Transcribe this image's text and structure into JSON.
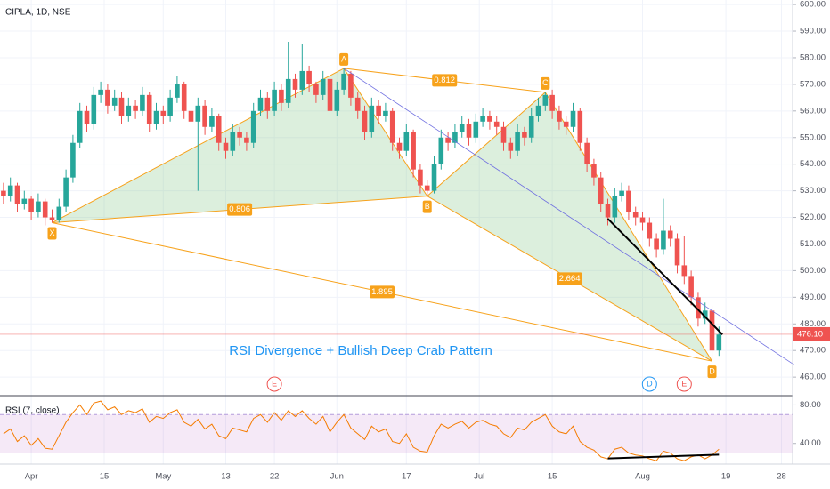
{
  "chart_data": {
    "type": "candlestick",
    "title": "CIPLA, 1D, NSE",
    "annotation": "RSI Divergence + Bullish Deep Crab Pattern",
    "up_color": "#26a69a",
    "down_color": "#ef5350",
    "xlim": [
      -0.5,
      113.6
    ],
    "ylim": [
      453.7,
      601.7
    ],
    "xticks": [
      {
        "value": 4,
        "label": "Apr"
      },
      {
        "value": 14.5,
        "label": "15"
      },
      {
        "value": 23,
        "label": "May"
      },
      {
        "value": 32,
        "label": "13"
      },
      {
        "value": 39,
        "label": "22"
      },
      {
        "value": 48,
        "label": "Jun"
      },
      {
        "value": 58,
        "label": "17"
      },
      {
        "value": 68.5,
        "label": "Jul"
      },
      {
        "value": 79,
        "label": "15"
      },
      {
        "value": 92,
        "label": "Aug"
      },
      {
        "value": 104,
        "label": "19"
      },
      {
        "value": 112,
        "label": "28"
      }
    ],
    "yticks": [
      {
        "value": 460,
        "label": "460.00"
      },
      {
        "value": 470,
        "label": "470.00"
      },
      {
        "value": 480,
        "label": "480.00"
      },
      {
        "value": 490,
        "label": "490.00"
      },
      {
        "value": 500,
        "label": "500.00"
      },
      {
        "value": 510,
        "label": "510.00"
      },
      {
        "value": 520,
        "label": "520.00"
      },
      {
        "value": 530,
        "label": "530.00"
      },
      {
        "value": 540,
        "label": "540.00"
      },
      {
        "value": 550,
        "label": "550.00"
      },
      {
        "value": 560,
        "label": "560.00"
      },
      {
        "value": 570,
        "label": "570.00"
      },
      {
        "value": 580,
        "label": "580.00"
      },
      {
        "value": 590,
        "label": "590.00"
      },
      {
        "value": 600,
        "label": "600.00"
      }
    ],
    "grid": true,
    "last_price": {
      "value": 476.1,
      "label": "476.10",
      "color": "#ef5350"
    },
    "ohlc": [
      [
        530,
        533,
        525,
        528
      ],
      [
        528,
        535,
        526,
        532
      ],
      [
        532,
        533,
        522,
        525
      ],
      [
        525,
        530,
        523,
        527
      ],
      [
        527,
        528,
        519,
        522
      ],
      [
        522,
        529,
        520,
        526
      ],
      [
        526,
        527,
        517,
        520
      ],
      [
        520,
        523,
        518,
        519
      ],
      [
        519,
        527,
        518,
        524
      ],
      [
        524,
        538,
        522,
        535
      ],
      [
        535,
        551,
        533,
        548
      ],
      [
        548,
        563,
        546,
        560
      ],
      [
        560,
        562,
        552,
        555
      ],
      [
        555,
        569,
        553,
        566
      ],
      [
        566,
        571,
        563,
        568
      ],
      [
        568,
        570,
        559,
        562
      ],
      [
        562,
        568,
        560,
        565
      ],
      [
        565,
        567,
        555,
        558
      ],
      [
        558,
        565,
        556,
        562
      ],
      [
        562,
        564,
        557,
        560
      ],
      [
        560,
        569,
        558,
        566
      ],
      [
        566,
        567,
        552,
        555
      ],
      [
        555,
        563,
        553,
        560
      ],
      [
        560,
        562,
        555,
        558
      ],
      [
        558,
        568,
        556,
        565
      ],
      [
        565,
        573,
        563,
        570
      ],
      [
        570,
        571,
        557,
        560
      ],
      [
        560,
        562,
        553,
        556
      ],
      [
        556,
        565,
        530,
        562
      ],
      [
        562,
        564,
        551,
        554
      ],
      [
        554,
        561,
        552,
        558
      ],
      [
        558,
        559,
        545,
        548
      ],
      [
        548,
        550,
        542,
        545
      ],
      [
        545,
        555,
        543,
        552
      ],
      [
        552,
        554,
        547,
        550
      ],
      [
        550,
        552,
        545,
        548
      ],
      [
        548,
        563,
        546,
        560
      ],
      [
        560,
        568,
        558,
        565
      ],
      [
        565,
        567,
        557,
        560
      ],
      [
        560,
        571,
        558,
        568
      ],
      [
        568,
        570,
        560,
        563
      ],
      [
        563,
        586,
        561,
        572
      ],
      [
        572,
        574,
        565,
        568
      ],
      [
        568,
        585,
        566,
        575
      ],
      [
        575,
        577,
        567,
        570
      ],
      [
        570,
        571,
        563,
        566
      ],
      [
        566,
        575,
        564,
        572
      ],
      [
        572,
        574,
        557,
        560
      ],
      [
        560,
        571,
        558,
        568
      ],
      [
        568,
        576,
        566,
        574
      ],
      [
        574,
        575,
        562,
        565
      ],
      [
        565,
        567,
        557,
        560
      ],
      [
        560,
        562,
        549,
        552
      ],
      [
        552,
        565,
        550,
        562
      ],
      [
        562,
        564,
        555,
        558
      ],
      [
        558,
        563,
        556,
        560
      ],
      [
        560,
        561,
        545,
        548
      ],
      [
        548,
        550,
        542,
        545
      ],
      [
        545,
        555,
        543,
        552
      ],
      [
        552,
        553,
        535,
        538
      ],
      [
        538,
        540,
        529,
        532
      ],
      [
        532,
        534,
        528,
        530
      ],
      [
        530,
        543,
        529,
        540
      ],
      [
        540,
        553,
        538,
        550
      ],
      [
        550,
        552,
        545,
        548
      ],
      [
        548,
        555,
        546,
        552
      ],
      [
        552,
        558,
        550,
        555
      ],
      [
        555,
        557,
        547,
        550
      ],
      [
        550,
        559,
        548,
        556
      ],
      [
        556,
        561,
        554,
        558
      ],
      [
        558,
        560,
        553,
        556
      ],
      [
        556,
        558,
        551,
        554
      ],
      [
        554,
        556,
        545,
        548
      ],
      [
        548,
        550,
        542,
        545
      ],
      [
        545,
        555,
        543,
        552
      ],
      [
        552,
        554,
        547,
        550
      ],
      [
        550,
        561,
        548,
        558
      ],
      [
        558,
        565,
        556,
        562
      ],
      [
        562,
        567,
        560,
        566
      ],
      [
        566,
        568,
        557,
        560
      ],
      [
        560,
        562,
        553,
        556
      ],
      [
        556,
        558,
        551,
        554
      ],
      [
        554,
        563,
        552,
        560
      ],
      [
        560,
        561,
        545,
        548
      ],
      [
        548,
        550,
        537,
        540
      ],
      [
        540,
        542,
        532,
        535
      ],
      [
        535,
        537,
        522,
        525
      ],
      [
        525,
        527,
        517,
        520
      ],
      [
        520,
        531,
        518,
        528
      ],
      [
        528,
        533,
        526,
        530
      ],
      [
        530,
        532,
        519,
        522
      ],
      [
        522,
        524,
        517,
        520
      ],
      [
        520,
        522,
        515,
        518
      ],
      [
        518,
        520,
        509,
        512
      ],
      [
        512,
        514,
        505,
        508
      ],
      [
        508,
        527,
        506,
        515
      ],
      [
        515,
        517,
        509,
        512
      ],
      [
        512,
        514,
        499,
        502
      ],
      [
        502,
        513,
        495,
        498
      ],
      [
        498,
        500,
        487,
        490
      ],
      [
        490,
        492,
        479,
        482
      ],
      [
        482,
        488,
        480,
        485
      ],
      [
        485,
        487,
        466,
        470
      ],
      [
        470,
        479,
        468,
        476
      ]
    ],
    "pattern": {
      "color": "#f7a21b",
      "fill": "rgba(129,199,132,0.28)",
      "points": [
        {
          "label": "X",
          "index": 7,
          "price": 518
        },
        {
          "label": "A",
          "index": 49,
          "price": 576
        },
        {
          "label": "B",
          "index": 61,
          "price": 528
        },
        {
          "label": "C",
          "index": 78,
          "price": 567
        },
        {
          "label": "D",
          "index": 102,
          "price": 466
        }
      ],
      "ratios": {
        "XB": "0.806",
        "AC": "0.812",
        "BD": "2.664",
        "XD": "1.895"
      }
    },
    "trendlines": [
      {
        "color": "#6f6fe0",
        "start": [
          49,
          576
        ],
        "end": [
          113.8,
          464.7
        ]
      },
      {
        "color": "#000000",
        "start": [
          87,
          519.5
        ],
        "end": [
          100.5,
          484
        ]
      },
      {
        "color": "#000000",
        "start": [
          100.5,
          484
        ],
        "end": [
          103.5,
          476
        ]
      }
    ],
    "events": [
      {
        "label": "E",
        "index": 39,
        "color": "#ef5350"
      },
      {
        "label": "D",
        "index": 93,
        "color": "#2196f3"
      },
      {
        "label": "E",
        "index": 98,
        "color": "#ef5350"
      }
    ],
    "rsi": {
      "label": "RSI (7, close)",
      "color": "#f57c00",
      "ylim": [
        18.5,
        87.8
      ],
      "bands": [
        30,
        70
      ],
      "yticks": [
        {
          "value": 40,
          "label": "40.00"
        },
        {
          "value": 80,
          "label": "80.00"
        }
      ],
      "values": [
        50,
        55,
        42,
        48,
        38,
        45,
        35,
        34,
        48,
        62,
        72,
        80,
        70,
        82,
        84,
        75,
        78,
        70,
        74,
        72,
        76,
        62,
        68,
        66,
        72,
        75,
        62,
        58,
        65,
        55,
        60,
        48,
        45,
        56,
        54,
        52,
        66,
        70,
        62,
        72,
        64,
        74,
        68,
        74,
        66,
        60,
        68,
        52,
        62,
        70,
        56,
        50,
        44,
        58,
        52,
        55,
        42,
        40,
        50,
        36,
        32,
        31,
        48,
        60,
        56,
        60,
        63,
        56,
        62,
        64,
        60,
        58,
        50,
        46,
        56,
        54,
        62,
        66,
        70,
        58,
        52,
        50,
        58,
        42,
        36,
        33,
        26,
        24,
        34,
        36,
        30,
        28,
        27,
        24,
        22,
        32,
        30,
        24,
        22,
        26,
        28,
        24,
        28,
        34
      ],
      "trendline": {
        "color": "#000000",
        "start": [
          87,
          24.4
        ],
        "end": [
          103,
          28.3
        ]
      }
    }
  }
}
